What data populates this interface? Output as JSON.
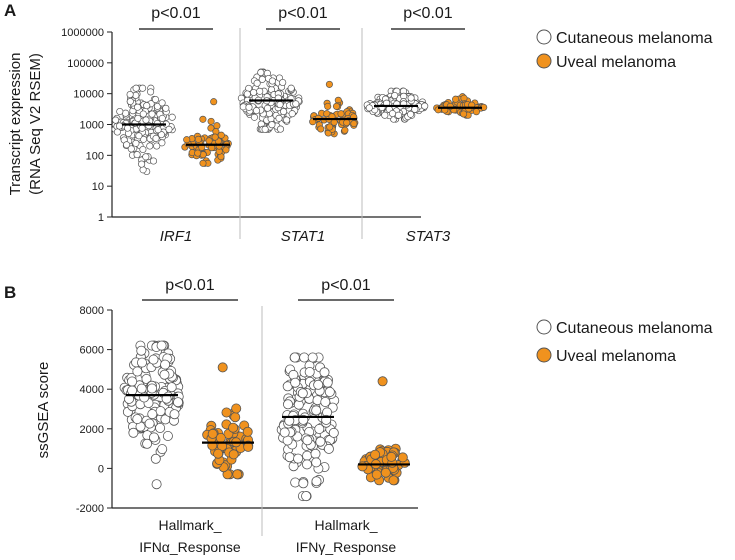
{
  "colors": {
    "cutaneous_fill": "#ffffff",
    "uveal_fill": "#f0921e",
    "point_stroke": "#555555",
    "divider": "#bdbdbd"
  },
  "legend": {
    "cutaneous": "Cutaneous melanoma",
    "uveal": "Uveal melanoma"
  },
  "chart_data": [
    {
      "type": "scatter",
      "subtype": "dot-plot",
      "panel": "A",
      "ylabel_line1": "Transcript expression",
      "ylabel_line2": "(RNA Seq V2 RSEM)",
      "yscale": "log",
      "ylim": [
        1,
        1000000
      ],
      "yticks": [
        "1",
        "10",
        "100",
        "1000",
        "10000",
        "100000",
        "1000000"
      ],
      "categories": [
        "IRF1",
        "STAT1",
        "STAT3"
      ],
      "significance": [
        "p<0.01",
        "p<0.01",
        "p<0.01"
      ],
      "series": [
        {
          "name": "Cutaneous melanoma",
          "median": [
            1000,
            6000,
            4000
          ],
          "range_min": [
            30,
            700,
            1500
          ],
          "range_max": [
            15000,
            50000,
            12000
          ]
        },
        {
          "name": "Uveal melanoma",
          "median": [
            220,
            1500,
            3500
          ],
          "range_min": [
            55,
            500,
            2000
          ],
          "range_max": [
            5500,
            20000,
            8000
          ]
        }
      ],
      "legend_position": "top-right"
    },
    {
      "type": "scatter",
      "subtype": "dot-plot",
      "panel": "B",
      "ylabel": "ssGSEA score",
      "ylim": [
        -2000,
        8000
      ],
      "yticks": [
        "-2000",
        "0",
        "2000",
        "4000",
        "6000",
        "8000"
      ],
      "categories_line1": [
        "Hallmark_",
        "Hallmark_"
      ],
      "categories_line2": [
        "IFNα_Response",
        "IFNγ_Response"
      ],
      "significance": [
        "p<0.01",
        "p<0.01"
      ],
      "series": [
        {
          "name": "Cutaneous melanoma",
          "median": [
            3700,
            2600
          ],
          "range_min": [
            -800,
            -1400
          ],
          "range_max": [
            6200,
            5600
          ]
        },
        {
          "name": "Uveal melanoma",
          "median": [
            1300,
            200
          ],
          "range_min": [
            -300,
            -600
          ],
          "range_max": [
            5100,
            4400
          ]
        }
      ],
      "legend_position": "top-right"
    }
  ]
}
